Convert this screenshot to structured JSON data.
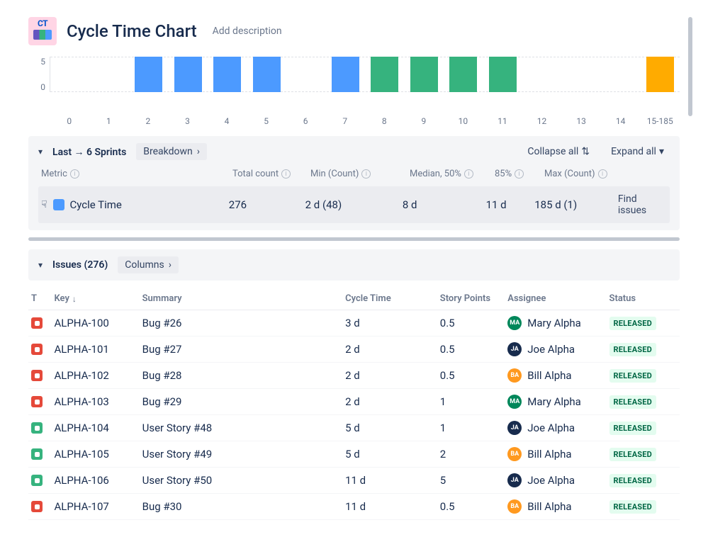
{
  "header": {
    "icon_label": "CT",
    "title": "Cycle Time Chart",
    "add_description": "Add description"
  },
  "chart": {
    "type": "bar",
    "y_ticks": [
      "5",
      "0"
    ],
    "y_max": 5,
    "bar_height_value": 5,
    "x_labels": [
      "0",
      "1",
      "2",
      "3",
      "4",
      "5",
      "6",
      "7",
      "8",
      "9",
      "10",
      "11",
      "12",
      "13",
      "14",
      "15-185"
    ],
    "bars": [
      {
        "x": 2,
        "color": "#4c9aff"
      },
      {
        "x": 3,
        "color": "#4c9aff"
      },
      {
        "x": 4,
        "color": "#4c9aff"
      },
      {
        "x": 5,
        "color": "#4c9aff"
      },
      {
        "x": 7,
        "color": "#4c9aff"
      },
      {
        "x": 8,
        "color": "#36b37e"
      },
      {
        "x": 9,
        "color": "#36b37e"
      },
      {
        "x": 10,
        "color": "#36b37e"
      },
      {
        "x": 11,
        "color": "#36b37e"
      },
      {
        "x": 15,
        "color": "#ffab00"
      }
    ],
    "grid_color": "#dfe1e6"
  },
  "sprints_panel": {
    "title": "Last → 6 Sprints",
    "breakdown_label": "Breakdown",
    "collapse_all": "Collapse all",
    "expand_all": "Expand all",
    "columns": {
      "metric": "Metric",
      "total": "Total count",
      "min": "Min (Count)",
      "median": "Median, 50%",
      "p85": "85%",
      "max": "Max (Count)"
    },
    "row": {
      "color": "#4c9aff",
      "name": "Cycle Time",
      "total": "276",
      "min": "2 d (48)",
      "median": "8 d",
      "p85": "11 d",
      "max": "185 d (1)",
      "find_issues": "Find issues"
    }
  },
  "issues_panel": {
    "title": "Issues (276)",
    "columns_chip": "Columns",
    "headers": {
      "t": "T",
      "key": "Key",
      "summary": "Summary",
      "cycle": "Cycle Time",
      "sp": "Story Points",
      "assignee": "Assignee",
      "status": "Status"
    },
    "rows": [
      {
        "type": "bug",
        "key": "ALPHA-100",
        "summary": "Bug #26",
        "cycle": "3 d",
        "sp": "0.5",
        "assignee": "Mary Alpha",
        "avatar_bg": "#00875a",
        "avatar_txt": "MA",
        "status": "RELEASED"
      },
      {
        "type": "bug",
        "key": "ALPHA-101",
        "summary": "Bug #27",
        "cycle": "2 d",
        "sp": "0.5",
        "assignee": "Joe Alpha",
        "avatar_bg": "#172b4d",
        "avatar_txt": "JA",
        "status": "RELEASED"
      },
      {
        "type": "bug",
        "key": "ALPHA-102",
        "summary": "Bug #28",
        "cycle": "2 d",
        "sp": "0.5",
        "assignee": "Bill Alpha",
        "avatar_bg": "#ff991f",
        "avatar_txt": "BA",
        "status": "RELEASED"
      },
      {
        "type": "bug",
        "key": "ALPHA-103",
        "summary": "Bug #29",
        "cycle": "2 d",
        "sp": "1",
        "assignee": "Mary Alpha",
        "avatar_bg": "#00875a",
        "avatar_txt": "MA",
        "status": "RELEASED"
      },
      {
        "type": "story",
        "key": "ALPHA-104",
        "summary": "User Story #48",
        "cycle": "5 d",
        "sp": "1",
        "assignee": "Joe Alpha",
        "avatar_bg": "#172b4d",
        "avatar_txt": "JA",
        "status": "RELEASED"
      },
      {
        "type": "story",
        "key": "ALPHA-105",
        "summary": "User Story #49",
        "cycle": "5 d",
        "sp": "2",
        "assignee": "Bill Alpha",
        "avatar_bg": "#ff991f",
        "avatar_txt": "BA",
        "status": "RELEASED"
      },
      {
        "type": "story",
        "key": "ALPHA-106",
        "summary": "User Story #50",
        "cycle": "11 d",
        "sp": "5",
        "assignee": "Joe Alpha",
        "avatar_bg": "#172b4d",
        "avatar_txt": "JA",
        "status": "RELEASED"
      },
      {
        "type": "bug",
        "key": "ALPHA-107",
        "summary": "Bug #30",
        "cycle": "11 d",
        "sp": "0.5",
        "assignee": "Bill Alpha",
        "avatar_bg": "#ff991f",
        "avatar_txt": "BA",
        "status": "RELEASED"
      }
    ]
  },
  "colors": {
    "bug": "#e5493a",
    "story": "#36b37e",
    "status_bg": "#e3fcef",
    "status_fg": "#006644"
  }
}
